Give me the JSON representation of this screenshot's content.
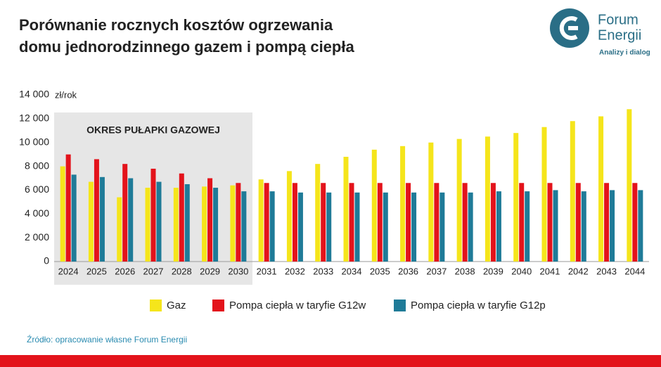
{
  "chart_data": {
    "type": "bar",
    "title": "Porównanie rocznych kosztów ogrzewania",
    "subtitle": "domu jednorodzinnego gazem i pompą ciepła",
    "y_unit": "zł/rok",
    "annotation": {
      "text": "OKRES PUŁAPKI GAZOWEJ",
      "start": "2024",
      "end": "2030"
    },
    "source": "Źródło: opracowanie własne Forum Energii",
    "logo": {
      "line1": "Forum",
      "line2": "Energii",
      "tagline": "Analizy i dialog"
    },
    "categories": [
      "2024",
      "2025",
      "2026",
      "2027",
      "2028",
      "2029",
      "2030",
      "2031",
      "2032",
      "2033",
      "2034",
      "2035",
      "2036",
      "2037",
      "2038",
      "2039",
      "2040",
      "2041",
      "2042",
      "2043",
      "2044"
    ],
    "series": [
      {
        "name": "Gaz",
        "color": "#f5e51b",
        "values": [
          8000,
          6700,
          5400,
          6200,
          6200,
          6300,
          6400,
          6900,
          7600,
          8200,
          8800,
          9400,
          9700,
          10000,
          10300,
          10500,
          10800,
          11300,
          11800,
          12200,
          12800
        ]
      },
      {
        "name": "Pompa ciepła w taryfie G12w",
        "color": "#e3131b",
        "values": [
          9000,
          8600,
          8200,
          7800,
          7400,
          7000,
          6600,
          6600,
          6600,
          6600,
          6600,
          6600,
          6600,
          6600,
          6600,
          6600,
          6600,
          6600,
          6600,
          6600,
          6600
        ]
      },
      {
        "name": "Pompa ciepła w taryfie G12p",
        "color": "#1f7b98",
        "values": [
          7300,
          7100,
          7000,
          6700,
          6500,
          6200,
          5900,
          5900,
          5800,
          5800,
          5800,
          5800,
          5800,
          5800,
          5800,
          5900,
          5900,
          6000,
          5900,
          6000,
          6000
        ]
      }
    ],
    "ylim": [
      0,
      14000
    ],
    "yticks": [
      0,
      {
        "value": 2000,
        "label": "2 000"
      },
      {
        "value": 4000,
        "label": "4 000"
      },
      {
        "value": 6000,
        "label": "6 000"
      },
      {
        "value": 8000,
        "label": "8 000"
      },
      {
        "value": 10000,
        "label": "10 000"
      },
      {
        "value": 12000,
        "label": "12 000"
      },
      {
        "value": 14000,
        "label": "14 000"
      }
    ],
    "grid": false
  }
}
